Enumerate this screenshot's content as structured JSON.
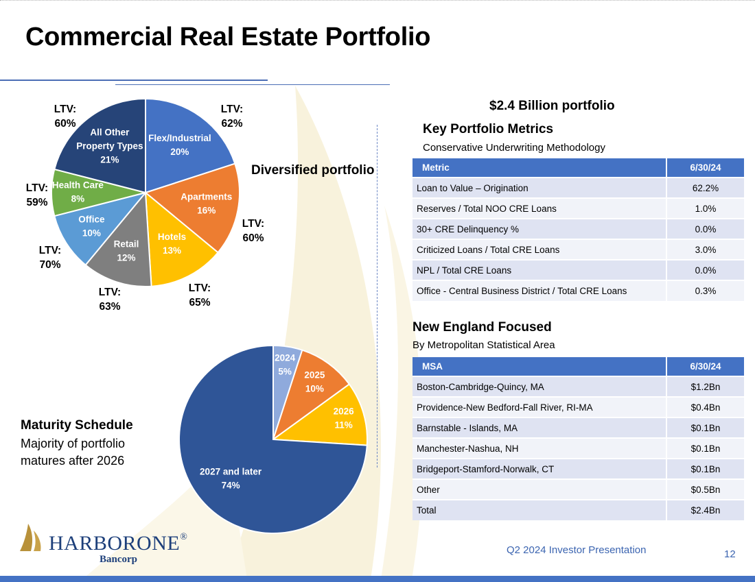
{
  "title": "Commercial Real Estate Portfolio",
  "diversified_label": "Diversified portfolio",
  "portfolio_size": "$2.4 Billion portfolio",
  "metrics_section": {
    "title": "Key Portfolio Metrics",
    "subtitle": "Conservative Underwriting Methodology",
    "columns": [
      "Metric",
      "6/30/24"
    ],
    "rows": [
      [
        "Loan to Value – Origination",
        "62.2%"
      ],
      [
        "Reserves / Total NOO CRE Loans",
        "1.0%"
      ],
      [
        "30+ CRE Delinquency %",
        "0.0%"
      ],
      [
        "Criticized Loans / Total CRE Loans",
        "3.0%"
      ],
      [
        "NPL / Total CRE Loans",
        "0.0%"
      ],
      [
        "Office - Central Business District / Total CRE Loans",
        "0.3%"
      ]
    ]
  },
  "msa_section": {
    "title": "New England Focused",
    "subtitle": "By Metropolitan Statistical Area",
    "columns": [
      "MSA",
      "6/30/24"
    ],
    "rows": [
      [
        "Boston-Cambridge-Quincy, MA",
        "$1.2Bn"
      ],
      [
        "Providence-New Bedford-Fall River, RI-MA",
        "$0.4Bn"
      ],
      [
        "Barnstable - Islands, MA",
        "$0.1Bn"
      ],
      [
        "Manchester-Nashua, NH",
        "$0.1Bn"
      ],
      [
        "Bridgeport-Stamford-Norwalk, CT",
        "$0.1Bn"
      ],
      [
        "Other",
        "$0.5Bn"
      ],
      [
        "Total",
        "$2.4Bn"
      ]
    ]
  },
  "maturity": {
    "title": "Maturity Schedule",
    "subtitle": "Majority of portfolio matures after 2026"
  },
  "chart_data": [
    {
      "type": "pie",
      "title": "",
      "slices": [
        {
          "label": "Flex/Industrial",
          "value": 20,
          "value_label": "20%",
          "ltv": "LTV:",
          "ltv_value": "62%",
          "color": "#4472c4"
        },
        {
          "label": "Apartments",
          "value": 16,
          "value_label": "16%",
          "ltv": "LTV:",
          "ltv_value": "60%",
          "color": "#ed7d31"
        },
        {
          "label": "Hotels",
          "value": 13,
          "value_label": "13%",
          "ltv": "LTV:",
          "ltv_value": "65%",
          "color": "#ffc000"
        },
        {
          "label": "Retail",
          "value": 12,
          "value_label": "12%",
          "ltv": "LTV:",
          "ltv_value": "63%",
          "color": "#7f7f7f"
        },
        {
          "label": "Office",
          "value": 10,
          "value_label": "10%",
          "ltv": "LTV:",
          "ltv_value": "70%",
          "color": "#5b9bd5"
        },
        {
          "label": "Health Care",
          "value": 8,
          "value_label": "8%",
          "ltv": "LTV:",
          "ltv_value": "59%",
          "color": "#70ad47"
        },
        {
          "label": "All Other Property Types",
          "label_lines": [
            "All Other",
            "Property Types"
          ],
          "value": 21,
          "value_label": "21%",
          "ltv": "LTV:",
          "ltv_value": "60%",
          "color": "#264478"
        }
      ]
    },
    {
      "type": "pie",
      "title": "",
      "slices": [
        {
          "label": "2024",
          "value": 5,
          "value_label": "5%",
          "color": "#8faadc"
        },
        {
          "label": "2025",
          "value": 10,
          "value_label": "10%",
          "color": "#ed7d31"
        },
        {
          "label": "2026",
          "value": 11,
          "value_label": "11%",
          "color": "#ffc000"
        },
        {
          "label": "2027 and later",
          "value": 74,
          "value_label": "74%",
          "color": "#2f5597"
        }
      ]
    }
  ],
  "footer": {
    "presentation": "Q2 2024 Investor Presentation",
    "page_number": "12"
  },
  "logo": {
    "name": "HARBORONE",
    "registered": "®",
    "sub": "Bancorp"
  }
}
